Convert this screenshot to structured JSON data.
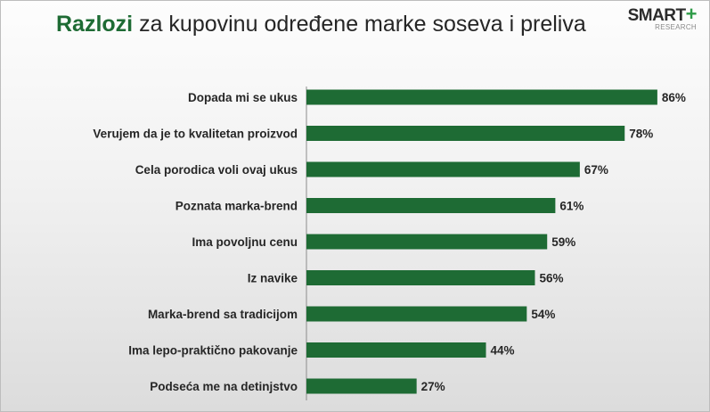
{
  "header": {
    "title_accent": "Razlozi",
    "title_rest": " za kupovinu određene marke soseva i preliva"
  },
  "logo": {
    "brand": "SMART",
    "plus": "+",
    "sub": "RESEARCH"
  },
  "colors": {
    "bar": "#1e6b34",
    "accent": "#1e6b34",
    "logo_plus": "#2e9b47"
  },
  "chart_data": {
    "type": "bar",
    "orientation": "horizontal",
    "title": "Razlozi za kupovinu određene marke soseva i preliva",
    "categories": [
      "Dopada mi se ukus",
      "Verujem da je to kvalitetan proizvod",
      "Cela porodica voli ovaj ukus",
      "Poznata marka-brend",
      "Ima povoljnu cenu",
      "Iz navike",
      "Marka-brend sa tradicijom",
      "Ima lepo-praktično pakovanje",
      "Podseća me na detinjstvo"
    ],
    "values": [
      86,
      78,
      67,
      61,
      59,
      56,
      54,
      44,
      27
    ],
    "value_labels": [
      "86%",
      "78%",
      "67%",
      "61%",
      "59%",
      "56%",
      "54%",
      "44%",
      "27%"
    ],
    "unit": "%",
    "xlim": [
      0,
      100
    ],
    "grid": false,
    "legend": "none"
  }
}
